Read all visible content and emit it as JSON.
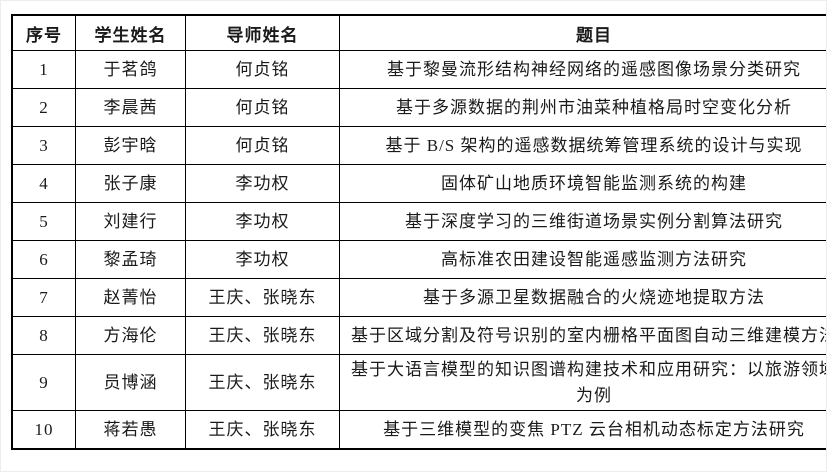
{
  "colors": {
    "background": "#ffffff",
    "border": "#000000",
    "text": "#1a1a1a"
  },
  "table": {
    "headers": {
      "no": "序号",
      "student": "学生姓名",
      "advisor": "导师姓名",
      "title": "题目"
    },
    "rows": [
      {
        "no": "1",
        "student": "于茗鸽",
        "advisor": "何贞铭",
        "title": "基于黎曼流形结构神经网络的遥感图像场景分类研究"
      },
      {
        "no": "2",
        "student": "李晨茜",
        "advisor": "何贞铭",
        "title": "基于多源数据的荆州市油菜种植格局时空变化分析"
      },
      {
        "no": "3",
        "student": "彭宇晗",
        "advisor": "何贞铭",
        "title": "基于 B/S 架构的遥感数据统筹管理系统的设计与实现"
      },
      {
        "no": "4",
        "student": "张子康",
        "advisor": "李功权",
        "title": "固体矿山地质环境智能监测系统的构建"
      },
      {
        "no": "5",
        "student": "刘建行",
        "advisor": "李功权",
        "title": "基于深度学习的三维街道场景实例分割算法研究"
      },
      {
        "no": "6",
        "student": "黎孟琦",
        "advisor": "李功权",
        "title": "高标准农田建设智能遥感监测方法研究"
      },
      {
        "no": "7",
        "student": "赵菁怡",
        "advisor": "王庆、张晓东",
        "title": "基于多源卫星数据融合的火烧迹地提取方法"
      },
      {
        "no": "8",
        "student": "方海伦",
        "advisor": "王庆、张晓东",
        "title": "基于区域分割及符号识别的室内栅格平面图自动三维建模方法"
      },
      {
        "no": "9",
        "student": "员博涵",
        "advisor": "王庆、张晓东",
        "title": "基于大语言模型的知识图谱构建技术和应用研究：以旅游领域为例"
      },
      {
        "no": "10",
        "student": "蒋若愚",
        "advisor": "王庆、张晓东",
        "title": "基于三维模型的变焦 PTZ 云台相机动态标定方法研究"
      }
    ]
  }
}
